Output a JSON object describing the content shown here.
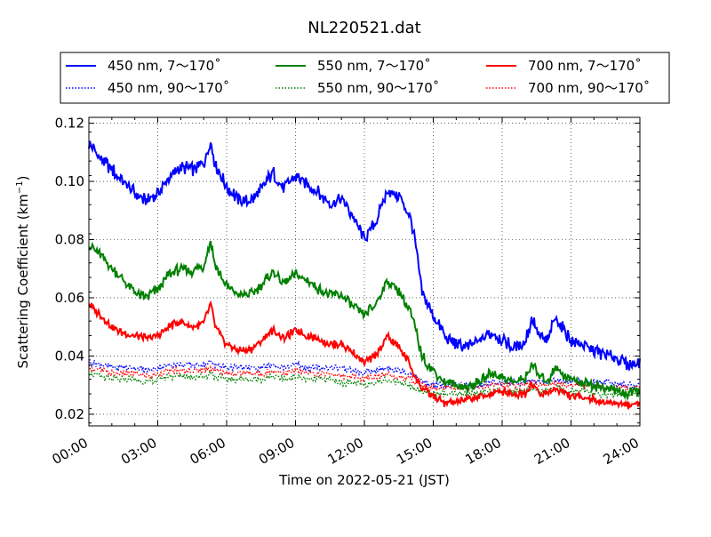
{
  "chart_data": {
    "type": "line",
    "title": "NL220521.dat",
    "xlabel": "Time on 2022-05-21 (JST)",
    "ylabel": "Scattering Coefficient (km",
    "ylabel_exp": "−1",
    "ylabel_close": ")",
    "xlim": [
      "00:00",
      "24:00"
    ],
    "ylim": [
      0.016,
      0.122
    ],
    "x_ticks": [
      "00:00",
      "03:00",
      "06:00",
      "09:00",
      "12:00",
      "15:00",
      "18:00",
      "21:00",
      "24:00"
    ],
    "y_ticks": [
      "0.02",
      "0.04",
      "0.06",
      "0.08",
      "0.10",
      "0.12"
    ],
    "y_tick_values": [
      0.02,
      0.04,
      0.06,
      0.08,
      0.1,
      0.12
    ],
    "grid": true,
    "legend_position": "top, above plot",
    "colors": {
      "blue": "#0000ff",
      "green": "#008000",
      "red": "#ff0000"
    },
    "x_hours": [
      0,
      0.5,
      1,
      1.5,
      2,
      2.5,
      3,
      3.5,
      4,
      4.5,
      5,
      5.3,
      5.5,
      6,
      6.5,
      7,
      7.5,
      8,
      8.5,
      9,
      9.5,
      10,
      10.5,
      11,
      11.5,
      12,
      12.5,
      13,
      13.5,
      14,
      14.2,
      14.5,
      15,
      15.5,
      16,
      16.5,
      17,
      17.5,
      18,
      18.5,
      19,
      19.3,
      19.6,
      20,
      20.3,
      20.6,
      21,
      21.5,
      22,
      22.5,
      23,
      23.5,
      24
    ],
    "series": [
      {
        "name": "450 nm, 7～170˚",
        "style": "solid",
        "color": "#0000ff",
        "values": [
          0.113,
          0.108,
          0.104,
          0.1,
          0.096,
          0.093,
          0.096,
          0.101,
          0.105,
          0.104,
          0.106,
          0.114,
          0.106,
          0.098,
          0.094,
          0.093,
          0.097,
          0.103,
          0.098,
          0.102,
          0.099,
          0.096,
          0.092,
          0.094,
          0.088,
          0.08,
          0.086,
          0.097,
          0.095,
          0.088,
          0.08,
          0.062,
          0.054,
          0.047,
          0.044,
          0.043,
          0.045,
          0.048,
          0.046,
          0.043,
          0.045,
          0.053,
          0.047,
          0.045,
          0.053,
          0.05,
          0.045,
          0.044,
          0.042,
          0.04,
          0.039,
          0.037,
          0.038
        ]
      },
      {
        "name": "550 nm, 7～170˚",
        "style": "solid",
        "color": "#008000",
        "values": [
          0.078,
          0.075,
          0.07,
          0.066,
          0.062,
          0.06,
          0.063,
          0.068,
          0.07,
          0.069,
          0.071,
          0.08,
          0.071,
          0.064,
          0.061,
          0.061,
          0.064,
          0.069,
          0.065,
          0.068,
          0.066,
          0.063,
          0.061,
          0.061,
          0.057,
          0.054,
          0.058,
          0.066,
          0.062,
          0.055,
          0.05,
          0.04,
          0.035,
          0.031,
          0.03,
          0.029,
          0.031,
          0.034,
          0.033,
          0.031,
          0.032,
          0.038,
          0.033,
          0.031,
          0.037,
          0.034,
          0.032,
          0.031,
          0.03,
          0.029,
          0.028,
          0.027,
          0.028
        ]
      },
      {
        "name": "700 nm, 7～170˚",
        "style": "solid",
        "color": "#ff0000",
        "values": [
          0.058,
          0.054,
          0.05,
          0.048,
          0.047,
          0.046,
          0.047,
          0.05,
          0.052,
          0.05,
          0.051,
          0.058,
          0.05,
          0.044,
          0.042,
          0.042,
          0.045,
          0.049,
          0.046,
          0.049,
          0.047,
          0.046,
          0.044,
          0.044,
          0.041,
          0.038,
          0.04,
          0.047,
          0.043,
          0.037,
          0.033,
          0.029,
          0.026,
          0.024,
          0.024,
          0.025,
          0.026,
          0.027,
          0.028,
          0.027,
          0.027,
          0.031,
          0.027,
          0.027,
          0.029,
          0.028,
          0.026,
          0.026,
          0.025,
          0.024,
          0.024,
          0.023,
          0.024
        ]
      },
      {
        "name": "450 nm, 90～170˚",
        "style": "dotted",
        "color": "#0000ff",
        "values": [
          0.038,
          0.037,
          0.036,
          0.036,
          0.036,
          0.035,
          0.036,
          0.037,
          0.037,
          0.037,
          0.037,
          0.038,
          0.037,
          0.036,
          0.036,
          0.036,
          0.036,
          0.037,
          0.036,
          0.037,
          0.036,
          0.036,
          0.036,
          0.036,
          0.035,
          0.034,
          0.035,
          0.036,
          0.035,
          0.034,
          0.033,
          0.031,
          0.03,
          0.03,
          0.03,
          0.03,
          0.03,
          0.031,
          0.031,
          0.031,
          0.031,
          0.032,
          0.031,
          0.031,
          0.032,
          0.031,
          0.031,
          0.031,
          0.031,
          0.031,
          0.03,
          0.03,
          0.03
        ]
      },
      {
        "name": "550 nm, 90～170˚",
        "style": "dotted",
        "color": "#008000",
        "values": [
          0.034,
          0.033,
          0.032,
          0.032,
          0.032,
          0.031,
          0.032,
          0.033,
          0.033,
          0.033,
          0.033,
          0.034,
          0.033,
          0.032,
          0.032,
          0.032,
          0.032,
          0.033,
          0.032,
          0.033,
          0.032,
          0.032,
          0.032,
          0.031,
          0.031,
          0.03,
          0.031,
          0.032,
          0.031,
          0.03,
          0.029,
          0.028,
          0.027,
          0.027,
          0.027,
          0.027,
          0.027,
          0.028,
          0.028,
          0.028,
          0.028,
          0.029,
          0.028,
          0.028,
          0.029,
          0.028,
          0.028,
          0.028,
          0.027,
          0.027,
          0.027,
          0.027,
          0.027
        ]
      },
      {
        "name": "700 nm, 90～170˚",
        "style": "dotted",
        "color": "#ff0000",
        "values": [
          0.036,
          0.035,
          0.034,
          0.034,
          0.034,
          0.033,
          0.034,
          0.035,
          0.035,
          0.035,
          0.035,
          0.036,
          0.035,
          0.034,
          0.034,
          0.034,
          0.034,
          0.035,
          0.034,
          0.035,
          0.034,
          0.034,
          0.034,
          0.033,
          0.033,
          0.032,
          0.033,
          0.034,
          0.033,
          0.032,
          0.031,
          0.03,
          0.029,
          0.029,
          0.029,
          0.029,
          0.029,
          0.03,
          0.03,
          0.03,
          0.03,
          0.031,
          0.03,
          0.03,
          0.031,
          0.03,
          0.03,
          0.03,
          0.03,
          0.029,
          0.029,
          0.029,
          0.029
        ]
      }
    ]
  }
}
